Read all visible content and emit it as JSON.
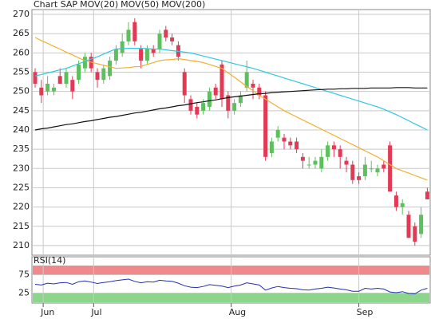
{
  "chart_data": [
    {
      "type": "candlestick",
      "series": [
        {
          "name": "Chart SAP",
          "color": "#e8413c",
          "up_color": "#5cc15c",
          "down_color": "#e23a55",
          "ohlc": [
            [
              255,
              256,
              251,
              252
            ],
            [
              251,
              253,
              247,
              249
            ],
            [
              250,
              254,
              249,
              252
            ],
            [
              250,
              252,
              249,
              251
            ],
            [
              254,
              256,
              252,
              252
            ],
            [
              252,
              256,
              251,
              255
            ],
            [
              253,
              254,
              248,
              250
            ],
            [
              253,
              258,
              252,
              257
            ],
            [
              256,
              260,
              255,
              259
            ],
            [
              259,
              260,
              255,
              256
            ],
            [
              255,
              256,
              251,
              253
            ],
            [
              253,
              257,
              252,
              256
            ],
            [
              254,
              259,
              253,
              258
            ],
            [
              258,
              262,
              257,
              261
            ],
            [
              260,
              265,
              259,
              263
            ],
            [
              263,
              268,
              262,
              266
            ],
            [
              268,
              269,
              262,
              263
            ],
            [
              261,
              262,
              256,
              258
            ],
            [
              258,
              262,
              257,
              261
            ],
            [
              261,
              262,
              259,
              260
            ],
            [
              261,
              266,
              260,
              265
            ],
            [
              266,
              267,
              263,
              264
            ],
            [
              264,
              265,
              262,
              263
            ],
            [
              262,
              263,
              258,
              259
            ],
            [
              255,
              256,
              247,
              249
            ],
            [
              248,
              249,
              244,
              245
            ],
            [
              246,
              247,
              243,
              244
            ],
            [
              245,
              248,
              244,
              247
            ],
            [
              246,
              251,
              245,
              250
            ],
            [
              251,
              252,
              248,
              249
            ],
            [
              257,
              258,
              246,
              248
            ],
            [
              249,
              250,
              243,
              245
            ],
            [
              245,
              248,
              244,
              247
            ],
            [
              247,
              250,
              246,
              249
            ],
            [
              251,
              258,
              250,
              255
            ],
            [
              252,
              253,
              248,
              251
            ],
            [
              251,
              252,
              248,
              249
            ],
            [
              249,
              250,
              232,
              233
            ],
            [
              234,
              238,
              233,
              237
            ],
            [
              238,
              241,
              237,
              240
            ],
            [
              238,
              239,
              235,
              237
            ],
            [
              237,
              238,
              235,
              236
            ],
            [
              237,
              238,
              234,
              235
            ],
            [
              233,
              234,
              230,
              232
            ],
            [
              231,
              233,
              230,
              231
            ],
            [
              231,
              233,
              230,
              232
            ],
            [
              230,
              235,
              229,
              233
            ],
            [
              233,
              237,
              232,
              236
            ],
            [
              236,
              237,
              233,
              235
            ],
            [
              235,
              236,
              230,
              233
            ],
            [
              232,
              233,
              229,
              231
            ],
            [
              231,
              232,
              226,
              227
            ],
            [
              228,
              229,
              226,
              227
            ],
            [
              228,
              233,
              227,
              231
            ],
            [
              230,
              232,
              229,
              230
            ],
            [
              229,
              231,
              228,
              230
            ],
            [
              231,
              232,
              229,
              230
            ],
            [
              236,
              237,
              224,
              224
            ],
            [
              223,
              224,
              219,
              220
            ],
            [
              220,
              222,
              218,
              221
            ],
            [
              218,
              219,
              212,
              212
            ],
            [
              215,
              216,
              210,
              211
            ],
            [
              213,
              220,
              212,
              218
            ],
            [
              224,
              225,
              222,
              222
            ]
          ]
        },
        {
          "name": "MOV(20)",
          "color": "#f0b030",
          "values": [
            264.0,
            263.2,
            262.5,
            261.7,
            261.0,
            260.2,
            259.5,
            258.7,
            258.0,
            257.6,
            257.2,
            256.8,
            256.4,
            256.0,
            256.1,
            256.2,
            256.4,
            256.5,
            257.0,
            257.5,
            258.0,
            258.2,
            258.3,
            258.5,
            258.3,
            258.0,
            257.8,
            257.5,
            257.0,
            256.5,
            256.0,
            254.8,
            253.7,
            252.5,
            251.3,
            250.2,
            249.0,
            248.0,
            247.0,
            246.0,
            245.0,
            244.2,
            243.4,
            242.6,
            241.8,
            241.0,
            240.2,
            239.4,
            238.6,
            237.8,
            237.0,
            236.2,
            235.4,
            234.6,
            233.8,
            233.0,
            232.0,
            231.0,
            230.0,
            229.4,
            228.8,
            228.2,
            227.6,
            227.0
          ]
        },
        {
          "name": "MOV(50)",
          "color": "#30c8e0",
          "values": [
            254.0,
            254.4,
            254.8,
            255.2,
            255.6,
            256.0,
            256.6,
            257.2,
            257.8,
            258.4,
            259.0,
            259.7,
            260.4,
            261.0,
            261.1,
            261.2,
            261.2,
            261.2,
            261.1,
            261.0,
            261.0,
            260.8,
            260.6,
            260.4,
            260.2,
            260.0,
            259.6,
            259.2,
            258.8,
            258.4,
            258.0,
            257.6,
            257.2,
            256.8,
            256.4,
            256.0,
            255.5,
            255.0,
            254.5,
            254.0,
            253.5,
            253.0,
            252.5,
            252.0,
            251.5,
            251.0,
            250.5,
            250.0,
            249.5,
            249.0,
            248.5,
            248.0,
            247.5,
            247.0,
            246.5,
            246.0,
            245.4,
            244.7,
            244.0,
            243.2,
            242.4,
            241.6,
            240.8,
            240.0
          ]
        },
        {
          "name": "MOV(200)",
          "color": "#111111",
          "values": [
            240.0,
            240.3,
            240.5,
            240.8,
            241.1,
            241.4,
            241.6,
            241.9,
            242.2,
            242.4,
            242.7,
            243.0,
            243.3,
            243.5,
            243.8,
            244.1,
            244.4,
            244.6,
            244.9,
            245.2,
            245.5,
            245.7,
            246.0,
            246.3,
            246.5,
            246.8,
            247.1,
            247.3,
            247.6,
            247.8,
            248.1,
            248.4,
            248.6,
            248.8,
            249.0,
            249.2,
            249.4,
            249.5,
            249.7,
            249.8,
            249.9,
            250.0,
            250.1,
            250.2,
            250.3,
            250.4,
            250.5,
            250.6,
            250.6,
            250.7,
            250.7,
            250.8,
            250.8,
            250.8,
            250.9,
            250.9,
            250.9,
            250.9,
            251.0,
            251.0,
            251.0,
            250.9,
            250.9,
            250.9
          ]
        }
      ],
      "ylim": [
        207.5,
        271.25
      ],
      "yticks": [
        210,
        215,
        220,
        225,
        230,
        235,
        240,
        245,
        250,
        255,
        260,
        265,
        270
      ],
      "xticks": [
        {
          "value": 1.3,
          "label": "Jun"
        },
        {
          "value": 9.4,
          "label": "Jul"
        },
        {
          "value": 31.5,
          "label": "Aug"
        },
        {
          "value": 52,
          "label": "Sep"
        }
      ],
      "grid": true
    },
    {
      "type": "line",
      "title": "RSI(14)",
      "series": [
        {
          "color": "#2030b0",
          "values": [
            49,
            47,
            52,
            50,
            53,
            54,
            49,
            56,
            58,
            55,
            51,
            54,
            56,
            59,
            61,
            63,
            57,
            53,
            56,
            55,
            60,
            58,
            57,
            52,
            45,
            41,
            40,
            43,
            48,
            46,
            44,
            40,
            44,
            47,
            53,
            50,
            47,
            33,
            39,
            43,
            40,
            38,
            37,
            34,
            33,
            36,
            38,
            41,
            39,
            36,
            34,
            30,
            30,
            38,
            36,
            38,
            36,
            28,
            26,
            29,
            24,
            23,
            33,
            38
          ]
        }
      ],
      "bands": [
        {
          "from": 75,
          "to": 100,
          "color": "#f08a8a"
        },
        {
          "from": 0,
          "to": 25,
          "color": "#8cd68c"
        }
      ],
      "ylim": [
        0,
        100
      ],
      "yticks": [
        25,
        75
      ],
      "grid": true
    }
  ]
}
